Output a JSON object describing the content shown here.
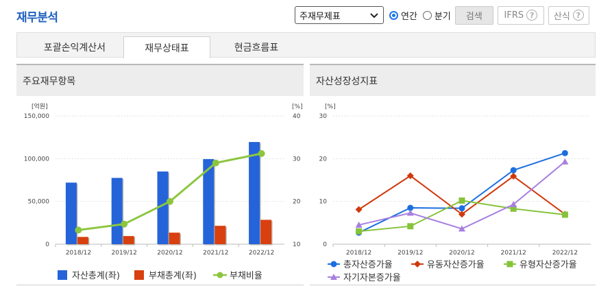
{
  "page": {
    "title": "재무분석"
  },
  "controls": {
    "report_select": "주재무제표",
    "period_annual": "연간",
    "period_quarter": "분기",
    "search": "검색",
    "ifrs": "IFRS",
    "calc": "산식",
    "help_glyph": "?"
  },
  "tabs": [
    {
      "label": "포괄손익계산서",
      "active": false
    },
    {
      "label": "재무상태표",
      "active": true
    },
    {
      "label": "현금흐름표",
      "active": false
    }
  ],
  "colors": {
    "accent": "#1e5fbf",
    "assets": "#2563d9",
    "liabilities": "#d8400f",
    "debt_ratio": "#8cc63f",
    "total_asset_growth": "#1c6fe0",
    "current_asset_growth": "#cf3a0d",
    "tangible_asset_growth": "#86c33a",
    "equity_growth": "#a77fe0"
  },
  "panels": {
    "left": {
      "title": "주요재무항목"
    },
    "right": {
      "title": "자산성장성지표"
    }
  },
  "chart_data": [
    {
      "type": "bar",
      "title": "",
      "categories": [
        "2018/12",
        "2019/12",
        "2020/12",
        "2021/12",
        "2022/12"
      ],
      "y_left_unit": "[억원]",
      "y_right_unit": "[%]",
      "ylim_left": [
        0,
        150000
      ],
      "ylim_right": [
        10,
        40
      ],
      "y_left_ticks": [
        "0",
        "50,000",
        "100,000",
        "150,000"
      ],
      "y_right_ticks": [
        "10",
        "20",
        "30",
        "40"
      ],
      "series": [
        {
          "name": "자산총계(좌)",
          "kind": "bar",
          "axis": "left",
          "values": [
            72000,
            77500,
            85000,
            99500,
            119500
          ]
        },
        {
          "name": "부채총계(좌)",
          "kind": "bar",
          "axis": "left",
          "values": [
            8500,
            9500,
            13500,
            21500,
            28500
          ]
        },
        {
          "name": "부채비율",
          "kind": "line",
          "axis": "right",
          "values": [
            13.3,
            14.7,
            20.0,
            29.0,
            31.2
          ]
        }
      ],
      "legend": "bottom"
    },
    {
      "type": "line",
      "title": "",
      "categories": [
        "2018/12",
        "2019/12",
        "2020/12",
        "2021/12",
        "2022/12"
      ],
      "y_unit": "[%]",
      "ylim": [
        0,
        30
      ],
      "y_ticks": [
        "0",
        "10",
        "20",
        "30"
      ],
      "series": [
        {
          "name": "총자산증가율",
          "marker": "circle",
          "values": [
            2.7,
            8.5,
            8.4,
            17.3,
            21.3
          ]
        },
        {
          "name": "유동자산증가율",
          "marker": "diamond",
          "values": [
            8.1,
            16.0,
            7.0,
            15.9,
            7.0
          ]
        },
        {
          "name": "유형자산증가율",
          "marker": "square",
          "values": [
            3.0,
            4.2,
            10.2,
            8.3,
            6.9
          ]
        },
        {
          "name": "자기자본증가율",
          "marker": "triangle",
          "values": [
            4.5,
            7.3,
            3.6,
            9.3,
            19.3
          ]
        }
      ],
      "legend": "bottom"
    }
  ]
}
